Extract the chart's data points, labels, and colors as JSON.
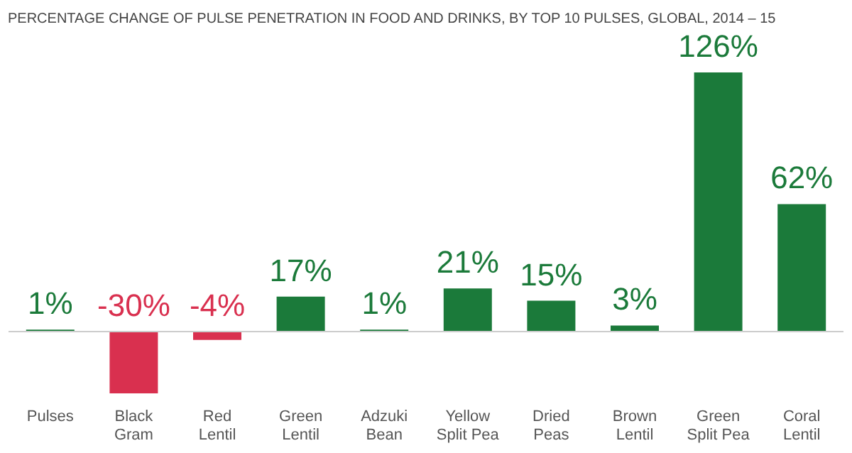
{
  "chart_data": {
    "type": "bar",
    "title": "PERCENTAGE CHANGE OF PULSE PENETRATION IN  FOOD AND DRINKS, BY TOP 10 PULSES, GLOBAL, 2014 – 15",
    "categories": [
      "Pulses",
      "Black Gram",
      "Red Lentil",
      "Green Lentil",
      "Adzuki Bean",
      "Yellow Split Pea",
      "Dried Peas",
      "Brown Lentil",
      "Green Split Pea",
      "Coral Lentil"
    ],
    "values": [
      1,
      -30,
      -4,
      17,
      1,
      21,
      15,
      3,
      126,
      62
    ],
    "value_labels": [
      "1%",
      "-30%",
      "-4%",
      "17%",
      "1%",
      "21%",
      "15%",
      "3%",
      "126%",
      "62%"
    ],
    "colors": [
      "#1b7a3a",
      "#d9304f",
      "#d9304f",
      "#1b7a3a",
      "#1b7a3a",
      "#1b7a3a",
      "#1b7a3a",
      "#1b7a3a",
      "#1b7a3a",
      "#1b7a3a"
    ],
    "grid": false
  }
}
